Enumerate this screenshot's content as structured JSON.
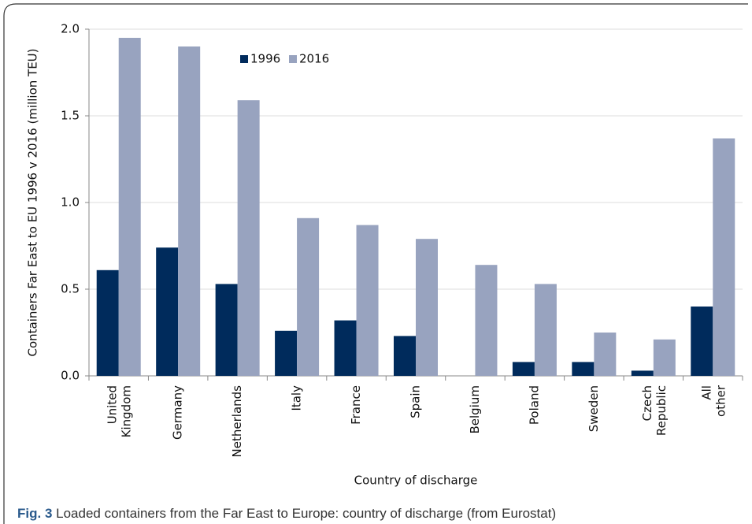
{
  "chart_data": {
    "type": "bar",
    "y_label": "Containers Far East to EU 1996 v 2016 (million TEU)",
    "x_label": "Country of discharge",
    "categories": [
      "United Kingdom",
      "Germany",
      "Netherlands",
      "Italy",
      "France",
      "Spain",
      "Belgium",
      "Poland",
      "Sweden",
      "Czech Republic",
      "All other"
    ],
    "series": [
      {
        "name": "1996",
        "color": "#002b5c",
        "values": [
          0.61,
          0.74,
          0.53,
          0.26,
          0.32,
          0.23,
          0,
          0.08,
          0.08,
          0.03,
          0.4
        ]
      },
      {
        "name": "2016",
        "color": "#98a3bf",
        "values": [
          1.95,
          1.9,
          1.59,
          0.91,
          0.87,
          0.79,
          0.64,
          0.53,
          0.25,
          0.21,
          1.37
        ]
      }
    ],
    "ylim": [
      0,
      2
    ],
    "yticks": [
      {
        "value": 0,
        "label": "0.0"
      },
      {
        "value": 0.5,
        "label": "0.5"
      },
      {
        "value": 1,
        "label": "1.0"
      },
      {
        "value": 1.5,
        "label": "1.5"
      },
      {
        "value": 2,
        "label": "2.0"
      }
    ],
    "grid": true,
    "legend": "top"
  },
  "caption": {
    "label": "Fig. 3",
    "text": "Loaded containers from the Far East to Europe: country of discharge (from Eurostat)"
  }
}
